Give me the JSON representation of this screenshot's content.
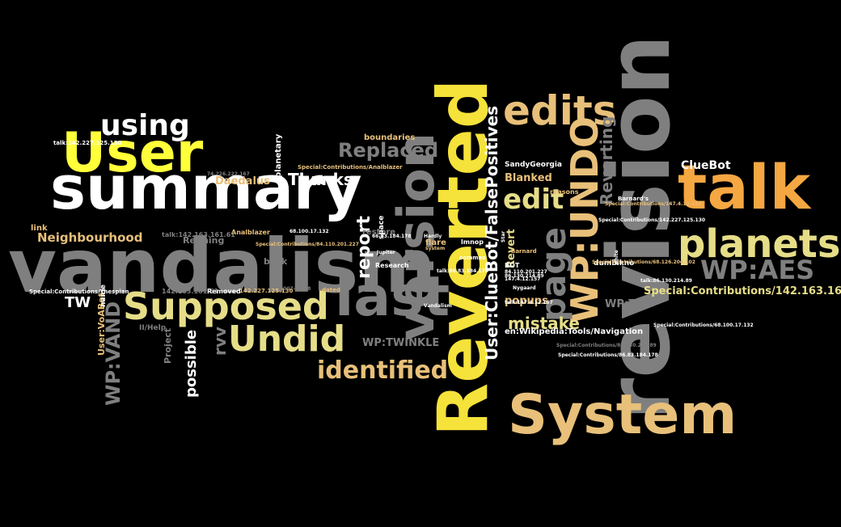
{
  "words": [
    {
      "t": "vandalism",
      "c": "gray"
    },
    {
      "t": "summary",
      "c": "white"
    },
    {
      "t": "User",
      "c": "lemon"
    },
    {
      "t": "Reverted",
      "c": "yellow"
    },
    {
      "t": "revision",
      "c": "gray"
    },
    {
      "t": "talk",
      "c": "orange"
    },
    {
      "t": "System",
      "c": "tan"
    },
    {
      "t": "last",
      "c": "gray"
    },
    {
      "t": "version",
      "c": "gray"
    },
    {
      "t": "edits",
      "c": "tan"
    },
    {
      "t": "planets",
      "c": "cream"
    },
    {
      "t": "Supposed",
      "c": "cream"
    },
    {
      "t": "Undid",
      "c": "cream"
    },
    {
      "t": "WP:UNDO",
      "c": "tan"
    },
    {
      "t": "page",
      "c": "gray"
    },
    {
      "t": "using",
      "c": "white"
    },
    {
      "t": "WP:AES",
      "c": "gray"
    },
    {
      "t": "identified",
      "c": "tan"
    },
    {
      "t": "Replaced",
      "c": "gray"
    },
    {
      "t": "edit",
      "c": "cream"
    },
    {
      "t": "User:ClueBot/FalsePositives",
      "c": "white"
    },
    {
      "t": "WP:VAND",
      "c": "gray"
    },
    {
      "t": "Thanks",
      "c": "white"
    },
    {
      "t": "report",
      "c": "white"
    },
    {
      "t": "Reverting",
      "c": "gray"
    },
    {
      "t": "mistake",
      "c": "cream"
    },
    {
      "t": "Special:Contributions/142.163.161.61",
      "c": "cream"
    },
    {
      "t": "Neighbourhood",
      "c": "tan"
    },
    {
      "t": "Daedalus",
      "c": "tan"
    },
    {
      "t": "possible",
      "c": "white"
    },
    {
      "t": "rvv",
      "c": "gray"
    },
    {
      "t": "TW",
      "c": "white"
    },
    {
      "t": "ClueBot",
      "c": "white"
    },
    {
      "t": "popups",
      "c": "tan"
    },
    {
      "t": "Blanked",
      "c": "tan"
    },
    {
      "t": "WP:TW",
      "c": "gray"
    },
    {
      "t": "WP:TWINKLE",
      "c": "gray"
    },
    {
      "t": "boundaries",
      "c": "tan"
    },
    {
      "t": "Revert",
      "c": "cream"
    },
    {
      "t": "en:Wikipedia:Tools/Navigation",
      "c": "white"
    },
    {
      "t": "Refining",
      "c": "gray"
    },
    {
      "t": "User:VoABot",
      "c": "tan"
    },
    {
      "t": "Project",
      "c": "gray"
    },
    {
      "t": "II/Help",
      "c": "gray"
    },
    {
      "t": "link",
      "c": "tan"
    },
    {
      "t": "planetary",
      "c": "white"
    },
    {
      "t": "SandyGeorgia",
      "c": "white"
    },
    {
      "t": "dumbikno",
      "c": "white"
    },
    {
      "t": "flare",
      "c": "tan"
    },
    {
      "t": "back",
      "c": "gray"
    },
    {
      "t": "restore",
      "c": "gray"
    },
    {
      "t": "Research",
      "c": "white"
    },
    {
      "t": "reasons",
      "c": "tan"
    },
    {
      "t": "Barnard's",
      "c": "white"
    },
    {
      "t": "Special:Contributions/Analblazer",
      "c": "tan"
    },
    {
      "t": "Analblazer",
      "c": "tan"
    },
    {
      "t": "talk:142.163.161.61",
      "c": "gray"
    },
    {
      "t": "142.163.161.61",
      "c": "gray"
    },
    {
      "t": "Removed",
      "c": "white"
    },
    {
      "t": "142.227.125.130",
      "c": "tan"
    },
    {
      "t": "2007-10-18",
      "c": "gray"
    },
    {
      "t": "dated",
      "c": "tan"
    },
    {
      "t": "lmnop",
      "c": "white"
    },
    {
      "t": "BOT",
      "c": "white"
    },
    {
      "t": "commas",
      "c": "white"
    },
    {
      "t": "Nygaard",
      "c": "white"
    },
    {
      "t": "talk:142.227.125.130",
      "c": "white"
    },
    {
      "t": "Special:Contributions/Thespian",
      "c": "white"
    },
    {
      "t": "Special:Contributions/84.110.201.227",
      "c": "tan"
    },
    {
      "t": "68.100.17.132",
      "c": "white"
    },
    {
      "t": "74.226.222.167",
      "c": "gray"
    },
    {
      "t": "147.4.12.157",
      "c": "white"
    },
    {
      "t": "talk:147.4.12.157",
      "c": "white"
    },
    {
      "t": "86.130.214.89",
      "c": "white"
    },
    {
      "t": "talk:86.83.184.178",
      "c": "white"
    },
    {
      "t": "66.83.184.178",
      "c": "white"
    },
    {
      "t": "84.110.201.227",
      "c": "white"
    },
    {
      "t": "Special:Contributions/68.126.204.102",
      "c": "tan"
    },
    {
      "t": "Special:Contributions/68.100.17.132",
      "c": "white"
    },
    {
      "t": "Special:Contributions/86.130.214.89",
      "c": "gray"
    },
    {
      "t": "Special:Contributions/86.83.184.178",
      "c": "white"
    },
    {
      "t": "Special:Contributions/142.227.125.130",
      "c": "white"
    },
    {
      "t": "Special:Contributions/147.4.12.157",
      "c": "tan"
    },
    {
      "t": "talk:86.130.214.89",
      "c": "white"
    },
    {
      "t": "name",
      "c": "white"
    },
    {
      "t": "Vandalism",
      "c": "white"
    },
    {
      "t": "space",
      "c": "white"
    },
    {
      "t": "Jupiter",
      "c": "white"
    },
    {
      "t": "Hardly",
      "c": "white"
    },
    {
      "t": "system",
      "c": "tan"
    },
    {
      "t": "Barnard",
      "c": "tan"
    },
    {
      "t": "Star",
      "c": "white"
    },
    {
      "t": "white",
      "c": "white"
    }
  ]
}
